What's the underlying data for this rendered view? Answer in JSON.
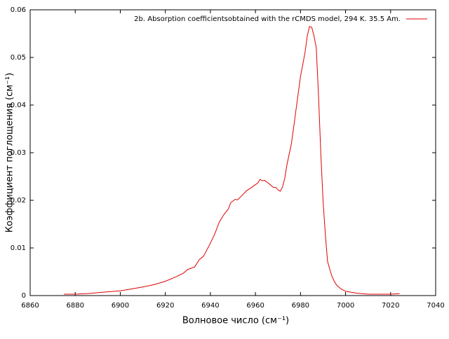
{
  "chart_data": {
    "type": "line",
    "xlabel": "Волновое число (см⁻¹)",
    "ylabel": "Коэффициент поглощения (см⁻¹)",
    "xlim": [
      6860,
      7040
    ],
    "xticks": [
      6860,
      6880,
      6900,
      6920,
      6940,
      6960,
      6980,
      7000,
      7020,
      7040
    ],
    "ylim": [
      0,
      0.06
    ],
    "yticks": [
      0,
      0.01,
      0.02,
      0.03,
      0.04,
      0.05,
      0.06
    ],
    "grid": false,
    "legend": "top-right",
    "series": [
      {
        "name": "2b. Absorption coefficientsobtained with the rCMDS model, 294 K. 35.5 Am.",
        "color": "#e00000",
        "x": [
          6875,
          6880,
          6885,
          6890,
          6895,
          6900,
          6905,
          6910,
          6915,
          6920,
          6925,
          6928,
          6930,
          6933,
          6935,
          6937,
          6940,
          6942,
          6944,
          6946,
          6948,
          6949,
          6951,
          6952,
          6954,
          6956,
          6958,
          6960,
          6961,
          6962,
          6963,
          6964,
          6966,
          6968,
          6969,
          6970,
          6971,
          6972,
          6973,
          6974,
          6976,
          6978,
          6980,
          6982,
          6983,
          6984,
          6985,
          6986,
          6987,
          6988,
          6989,
          6990,
          6991,
          6992,
          6993,
          6994,
          6995,
          6996,
          6998,
          7000,
          7005,
          7010,
          7015,
          7020,
          7024
        ],
        "values": [
          0.0003,
          0.0003,
          0.0004,
          0.0006,
          0.0008,
          0.001,
          0.0014,
          0.0018,
          0.0023,
          0.003,
          0.004,
          0.0047,
          0.0055,
          0.006,
          0.0075,
          0.0083,
          0.011,
          0.013,
          0.0155,
          0.017,
          0.0182,
          0.0195,
          0.0202,
          0.0201,
          0.021,
          0.022,
          0.0226,
          0.0233,
          0.0236,
          0.0244,
          0.0241,
          0.0242,
          0.0235,
          0.0227,
          0.0227,
          0.0222,
          0.0219,
          0.0228,
          0.0246,
          0.0275,
          0.032,
          0.039,
          0.046,
          0.051,
          0.0545,
          0.0565,
          0.0563,
          0.0545,
          0.052,
          0.042,
          0.03,
          0.02,
          0.013,
          0.0072,
          0.0055,
          0.004,
          0.003,
          0.0022,
          0.0014,
          0.0009,
          0.0005,
          0.0003,
          0.0003,
          0.0003,
          0.0004
        ]
      }
    ]
  }
}
